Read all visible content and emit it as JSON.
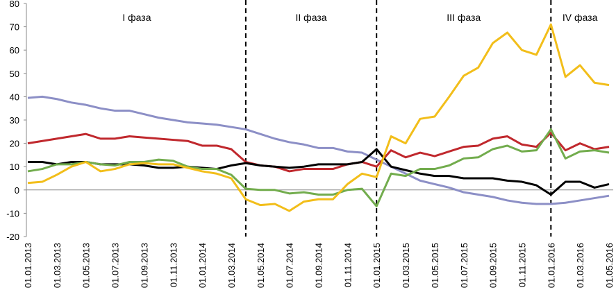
{
  "chart_data": {
    "type": "line",
    "categories": [
      "01.01.2013",
      null,
      "01.03.2013",
      null,
      "01.05.2013",
      null,
      "01.07.2013",
      null,
      "01.09.2013",
      null,
      "01.11.2013",
      null,
      "01.01.2014",
      null,
      "01.03.2014",
      null,
      "01.05.2014",
      null,
      "01.07.2014",
      null,
      "01.09.2014",
      null,
      "01.11.2014",
      null,
      "01.01.2015",
      null,
      "01.03.2015",
      null,
      "01.05.2015",
      null,
      "01.07.2015",
      null,
      "01.09.2015",
      null,
      "01.11.2015",
      null,
      "01.01.2016",
      null,
      "01.03.2016",
      null,
      "01.05.2016"
    ],
    "series": [
      {
        "color": "#8c8fc6",
        "values": [
          39.5,
          40,
          39,
          37.5,
          36.5,
          35,
          34,
          34,
          32.5,
          31,
          30,
          29,
          28.5,
          28,
          27,
          26,
          24,
          22,
          20.5,
          19.5,
          18,
          18,
          16.5,
          16,
          13,
          10,
          7,
          4,
          2.5,
          1,
          -1,
          -2,
          -3,
          -4.5,
          -5.5,
          -6,
          -6,
          -5.5,
          -4.5,
          -3.5,
          -2.5
        ]
      },
      {
        "color": "#c0282d",
        "values": [
          20,
          21,
          22,
          23,
          24,
          22,
          22,
          23,
          22.5,
          22,
          21.5,
          21,
          19,
          19,
          17.5,
          12,
          10.5,
          10,
          8,
          9,
          9,
          9,
          11,
          12,
          10,
          17,
          14,
          16,
          14.5,
          16.5,
          18.5,
          19,
          22,
          23,
          19.5,
          18.5,
          24.5,
          17,
          20,
          17.5,
          18.5
        ]
      },
      {
        "color": "#000000",
        "values": [
          12,
          12,
          11,
          12,
          12,
          11,
          11,
          11,
          10.5,
          9.5,
          9.5,
          10,
          9.5,
          9,
          10.5,
          11.5,
          10.5,
          10,
          9.5,
          10,
          11,
          11,
          11,
          12,
          17.5,
          10,
          8.5,
          7,
          6,
          6,
          5,
          5,
          5,
          4,
          3.5,
          2,
          -2,
          3.5,
          3.5,
          1,
          2.5
        ]
      },
      {
        "color": "#72ac4d",
        "values": [
          8,
          9,
          11,
          11,
          12,
          11,
          10.5,
          12,
          12,
          13,
          12.5,
          10,
          9,
          9,
          6.5,
          0.5,
          0,
          0,
          -1.5,
          -1,
          -2,
          -2,
          0,
          0.5,
          -7,
          7,
          6,
          9,
          9,
          10.5,
          13.5,
          14,
          17.5,
          19,
          16.5,
          17,
          26,
          13.5,
          16.5,
          17,
          16
        ]
      },
      {
        "color": "#f2be1a",
        "values": [
          3,
          3.5,
          6.5,
          10,
          12,
          8,
          9,
          11,
          11.5,
          11,
          11,
          9.5,
          8,
          7,
          5,
          -4,
          -6.5,
          -6,
          -9,
          -5,
          -4,
          -4,
          2.5,
          7,
          5.5,
          23,
          20,
          30.5,
          31.5,
          40,
          49,
          52.5,
          63,
          67.5,
          60,
          58,
          71,
          48.5,
          53.5,
          46,
          45
        ]
      }
    ],
    "phases": [
      {
        "label": "I фаза",
        "from": 0,
        "to": 15
      },
      {
        "label": "II фаза",
        "from": 15,
        "to": 24
      },
      {
        "label": "III фаза",
        "from": 24,
        "to": 36
      },
      {
        "label": "IV фаза",
        "from": 36,
        "to": 40
      }
    ],
    "ylim": [
      -20,
      80
    ],
    "yticks": [
      -20,
      -10,
      0,
      10,
      20,
      30,
      40,
      50,
      60,
      70,
      80
    ]
  }
}
